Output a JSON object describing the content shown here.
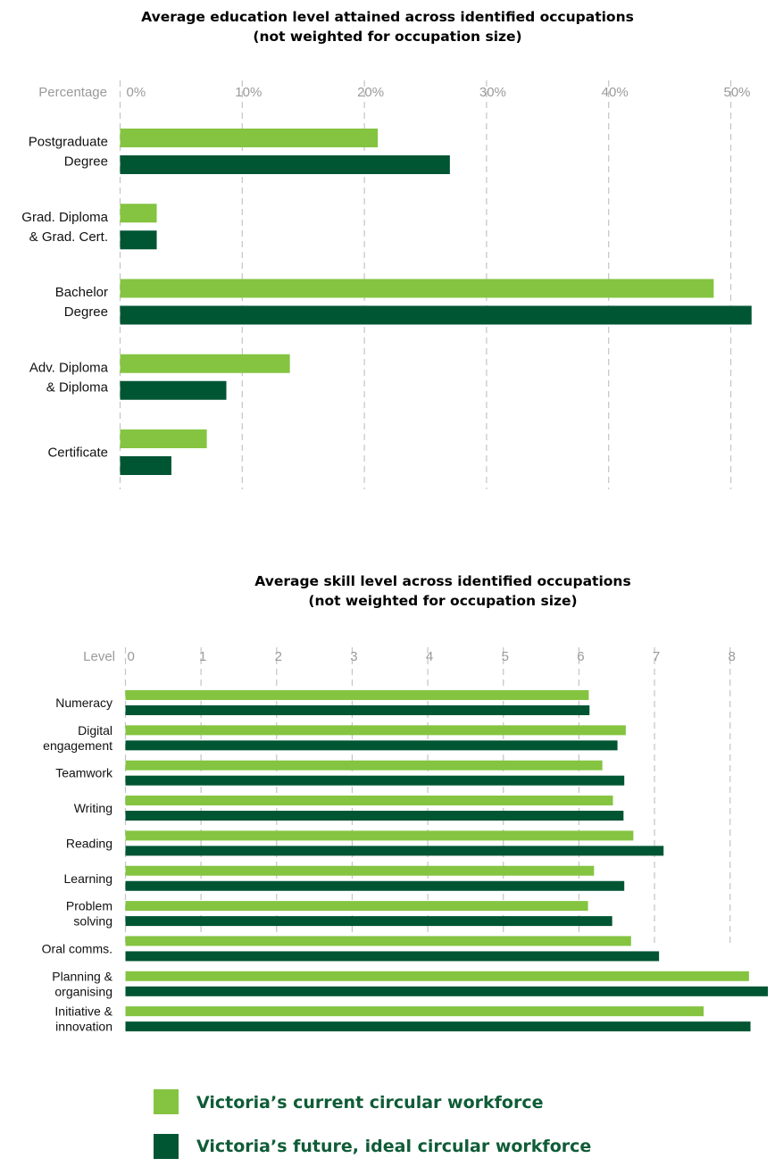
{
  "colors": {
    "current": "#84c441",
    "future": "#005533",
    "grid": "#c4c4c4",
    "tick": "#9a9a9a",
    "legend_text": "#0f5c37"
  },
  "legend": {
    "current": "Victoria’s current circular workforce",
    "future": "Victoria’s future, ideal circular workforce"
  },
  "chart_data": [
    {
      "type": "bar",
      "orientation": "horizontal",
      "title": [
        "Average education level attained across identified occupations",
        "(not weighted for occupation size)"
      ],
      "xlabel": "Percentage",
      "ticks": [
        "0%",
        "10%",
        "20%",
        "30%",
        "40%",
        "50%"
      ],
      "tick_values": [
        0,
        10,
        20,
        30,
        40,
        50
      ],
      "xlim": [
        0,
        52
      ],
      "grid": true,
      "categories": [
        [
          "Postgraduate",
          "Degree"
        ],
        [
          "Grad. Diploma",
          "& Grad. Cert."
        ],
        [
          "Bachelor",
          "Degree"
        ],
        [
          "Adv. Diploma",
          "& Diploma"
        ],
        [
          "Certificate"
        ]
      ],
      "series": [
        {
          "name": "Victoria’s current circular workforce",
          "values": [
            21.1,
            3.0,
            48.6,
            13.9,
            7.1
          ]
        },
        {
          "name": "Victoria’s future, ideal circular workforce",
          "values": [
            27.0,
            3.0,
            51.7,
            8.7,
            4.2
          ]
        }
      ]
    },
    {
      "type": "bar",
      "orientation": "horizontal",
      "title": [
        "Average skill level across identified occupations",
        "(not weighted for occupation size)"
      ],
      "xlabel": "Level",
      "ticks": [
        "0",
        "1",
        "2",
        "3",
        "4",
        "5",
        "6",
        "7",
        "8"
      ],
      "tick_values": [
        0,
        1,
        2,
        3,
        4,
        5,
        6,
        7,
        8
      ],
      "xlim": [
        0,
        8.5
      ],
      "grid": true,
      "categories": [
        [
          "Numeracy"
        ],
        [
          "Digital",
          "engagement"
        ],
        [
          "Teamwork"
        ],
        [
          "Writing"
        ],
        [
          "Reading"
        ],
        [
          "Learning"
        ],
        [
          "Problem",
          "solving"
        ],
        [
          "Oral comms."
        ],
        [
          "Planning &",
          "organising"
        ],
        [
          "Initiative &",
          "innovation"
        ]
      ],
      "series": [
        {
          "name": "Victoria’s current circular workforce",
          "values": [
            6.13,
            6.62,
            6.31,
            6.45,
            6.72,
            6.2,
            6.12,
            6.69,
            8.25,
            7.65
          ]
        },
        {
          "name": "Victoria’s future, ideal circular workforce",
          "values": [
            6.14,
            6.51,
            6.6,
            6.59,
            7.12,
            6.6,
            6.44,
            7.06,
            8.5,
            8.27
          ]
        }
      ]
    }
  ]
}
